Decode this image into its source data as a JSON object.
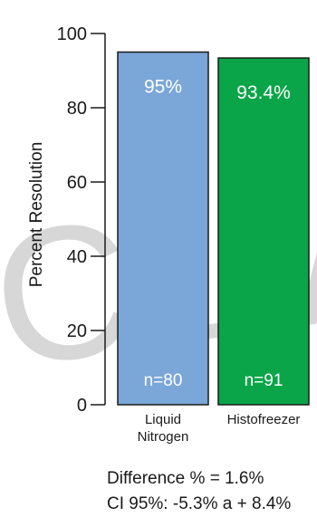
{
  "watermark": "CLIA",
  "notes": {
    "difference": "Difference % = 1.6%",
    "ci": "CI 95%: -5.3% a + 8.4%"
  },
  "chart_data": {
    "type": "bar",
    "title": "",
    "xlabel": "",
    "ylabel": "Percent Resolution",
    "ylim": [
      0,
      100
    ],
    "yticks": [
      0,
      20,
      40,
      60,
      80,
      100
    ],
    "grid": false,
    "categories": [
      {
        "lines": [
          "Liquid",
          "Nitrogen"
        ]
      },
      {
        "lines": [
          "Histofreezer"
        ]
      }
    ],
    "values": [
      95,
      93.4
    ],
    "value_labels": [
      "95%",
      "93.4%"
    ],
    "n_labels": [
      "n=80",
      "n=91"
    ],
    "colors": [
      "#7aa6d8",
      "#0aa548"
    ]
  }
}
